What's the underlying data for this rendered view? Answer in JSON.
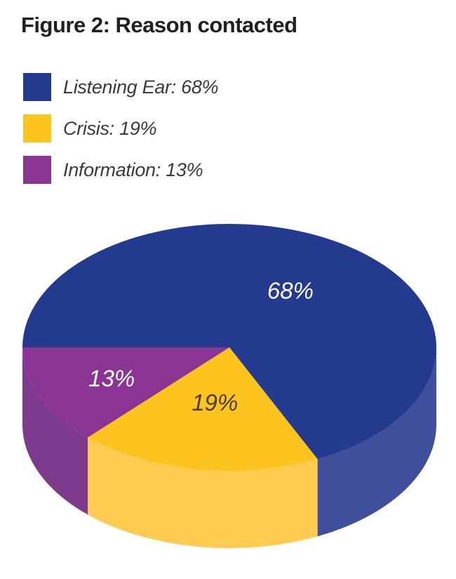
{
  "title": "Figure 2: Reason contacted",
  "chart_data": {
    "type": "pie",
    "title": "Figure 2: Reason contacted",
    "style": "3d",
    "legend_position": "top-left",
    "slices": [
      {
        "label": "Listening Ear",
        "legend_text": "Listening Ear: 68%",
        "value": 68,
        "display": "68%",
        "color": "#233a8f",
        "side_color": "#3f4f9c",
        "text_color": "#ffffff"
      },
      {
        "label": "Crisis",
        "legend_text": "Crisis: 19%",
        "value": 19,
        "display": "19%",
        "color": "#fdc41f",
        "side_color": "#fdcb4f",
        "text_color": "#4a3a10"
      },
      {
        "label": "Information",
        "legend_text": "Information: 13%",
        "value": 13,
        "display": "13%",
        "color": "#8a3593",
        "side_color": "#7e3a8d",
        "text_color": "#ffffff"
      }
    ]
  }
}
